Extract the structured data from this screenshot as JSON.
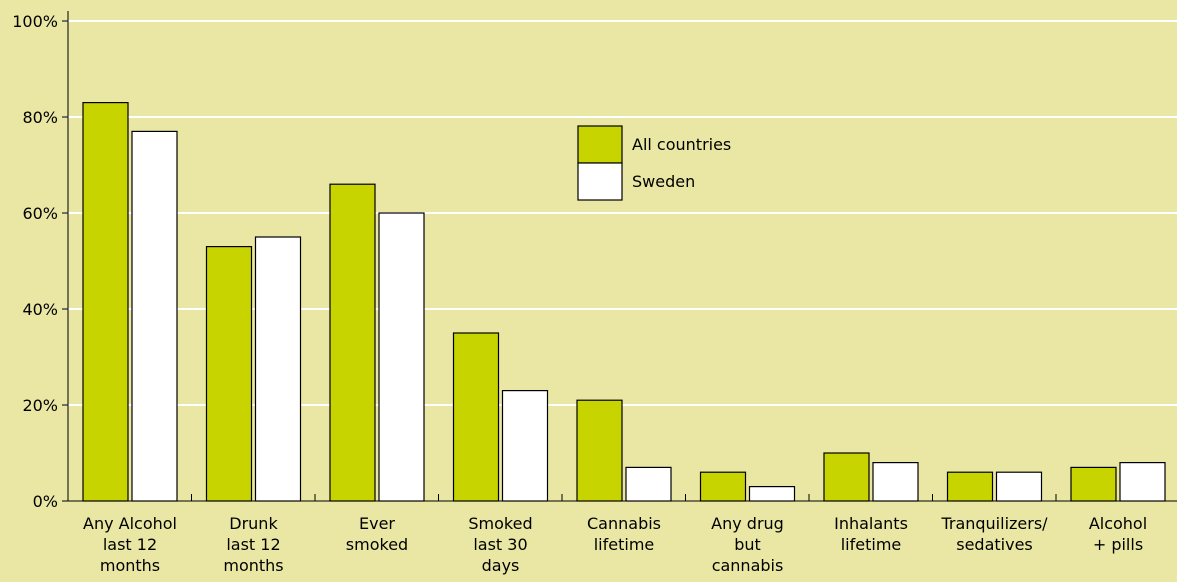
{
  "chart_data": {
    "type": "bar",
    "categories": [
      [
        "Any Alcohol",
        "last 12",
        "months"
      ],
      [
        "Drunk",
        "last 12",
        "months"
      ],
      [
        "Ever",
        "smoked"
      ],
      [
        "Smoked",
        "last 30",
        "days"
      ],
      [
        "Cannabis",
        "lifetime"
      ],
      [
        "Any drug",
        "but",
        "cannabis"
      ],
      [
        "Inhalants",
        "lifetime"
      ],
      [
        "Tranquilizers/",
        "sedatives"
      ],
      [
        "Alcohol",
        "+ pills"
      ]
    ],
    "series": [
      {
        "name": "All countries",
        "color": "#c8d400",
        "values": [
          83,
          53,
          66,
          35,
          21,
          6,
          10,
          6,
          7
        ]
      },
      {
        "name": "Sweden",
        "color": "#ffffff",
        "values": [
          77,
          55,
          60,
          23,
          7,
          3,
          8,
          6,
          8
        ]
      }
    ],
    "yticks": [
      "0%",
      "20%",
      "40%",
      "60%",
      "80%",
      "100%"
    ],
    "ylim": [
      0,
      100
    ],
    "grid": true,
    "legend_position": "upper-center",
    "background": "#e9e7a3"
  }
}
